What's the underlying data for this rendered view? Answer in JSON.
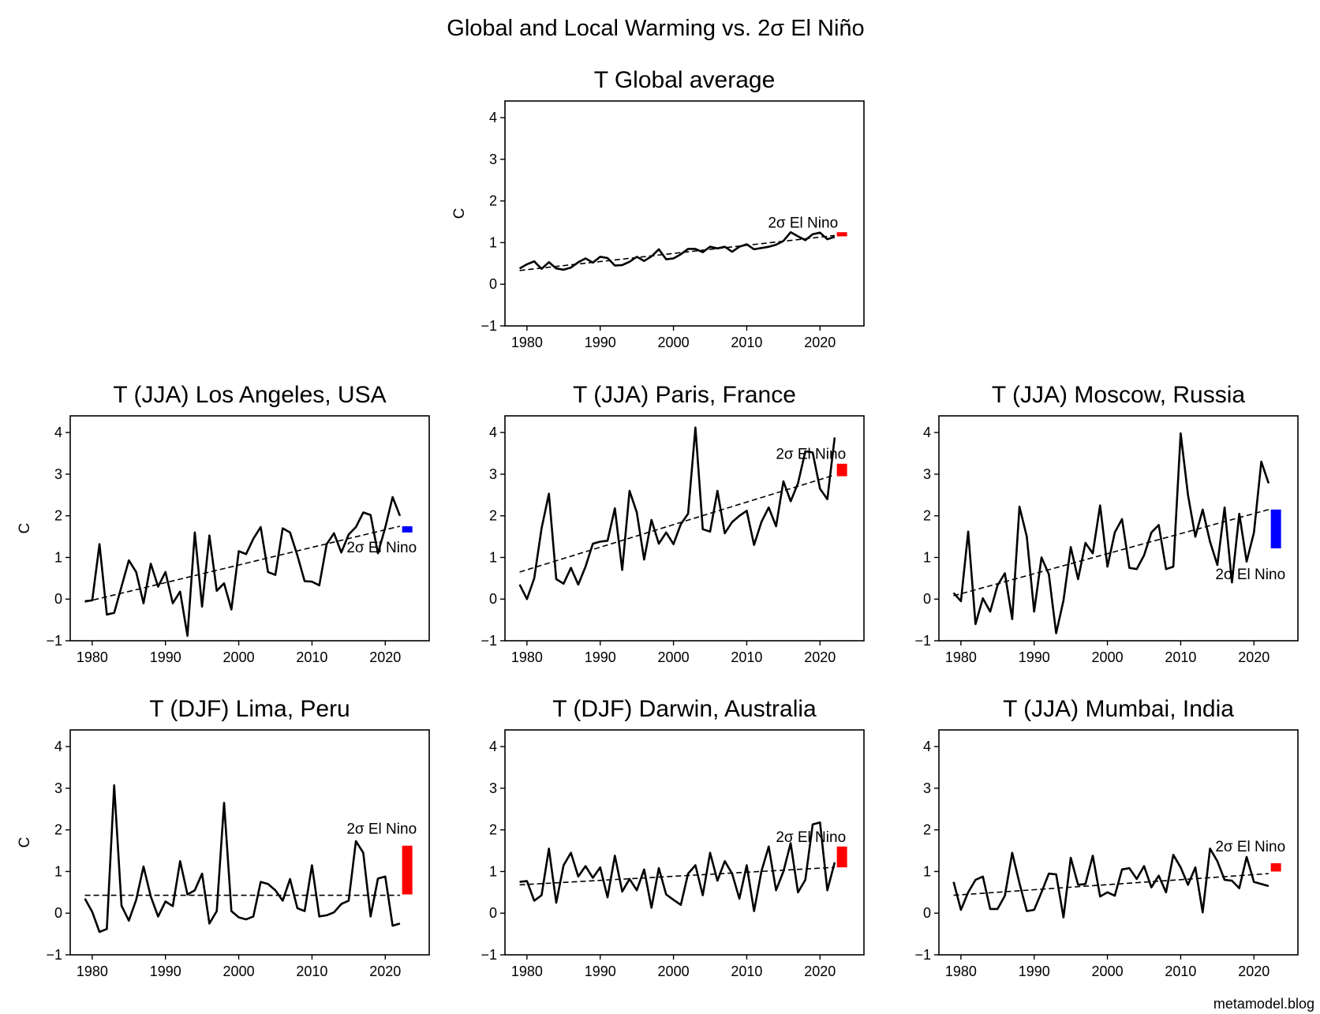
{
  "figure": {
    "suptitle": "Global and Local Warming vs. 2σ El Niño",
    "credit": "metamodel.blog"
  },
  "chart_data": [
    {
      "type": "line",
      "title": "T Global average",
      "ylabel": "C",
      "xlim": [
        1977,
        2026
      ],
      "ylim": [
        -1,
        4.4
      ],
      "xticks": [
        1980,
        1990,
        2000,
        2010,
        2020
      ],
      "yticks": [
        -1,
        0,
        1,
        2,
        3,
        4
      ],
      "annotation": "2σ El Nino",
      "bar": {
        "color": "#ff0000",
        "x": 2023,
        "y0": 1.15,
        "y1": 1.25
      },
      "trend": {
        "x": [
          1979,
          2022
        ],
        "y": [
          0.33,
          1.17
        ]
      },
      "series": [
        {
          "x_start": 1979,
          "values": [
            0.38,
            0.48,
            0.55,
            0.37,
            0.53,
            0.38,
            0.35,
            0.4,
            0.53,
            0.62,
            0.52,
            0.66,
            0.63,
            0.45,
            0.46,
            0.54,
            0.66,
            0.56,
            0.67,
            0.84,
            0.6,
            0.62,
            0.72,
            0.85,
            0.85,
            0.77,
            0.9,
            0.86,
            0.9,
            0.78,
            0.9,
            0.96,
            0.84,
            0.87,
            0.9,
            0.95,
            1.04,
            1.25,
            1.15,
            1.06,
            1.2,
            1.24,
            1.08,
            1.14
          ]
        }
      ]
    },
    {
      "type": "line",
      "title": "T (JJA) Los Angeles, USA",
      "ylabel": "C",
      "xlim": [
        1977,
        2026
      ],
      "ylim": [
        -1,
        4.4
      ],
      "xticks": [
        1980,
        1990,
        2000,
        2010,
        2020
      ],
      "yticks": [
        -1,
        0,
        1,
        2,
        3,
        4
      ],
      "annotation": "2σ El Nino",
      "bar": {
        "color": "#0000ff",
        "x": 2023,
        "y0": 1.6,
        "y1": 1.75
      },
      "trend": {
        "x": [
          1979,
          2022
        ],
        "y": [
          -0.07,
          1.75
        ]
      },
      "series": [
        {
          "x_start": 1979,
          "values": [
            -0.05,
            -0.03,
            1.32,
            -0.37,
            -0.33,
            0.3,
            0.93,
            0.65,
            -0.1,
            0.85,
            0.3,
            0.65,
            -0.1,
            0.18,
            -0.88,
            1.6,
            -0.18,
            1.53,
            0.2,
            0.38,
            -0.25,
            1.15,
            1.08,
            1.45,
            1.73,
            0.65,
            0.58,
            1.7,
            1.6,
            1.05,
            0.43,
            0.42,
            0.33,
            1.32,
            1.58,
            1.12,
            1.55,
            1.73,
            2.08,
            2.02,
            1.1,
            1.72,
            2.45,
            2.0
          ]
        }
      ]
    },
    {
      "type": "line",
      "title": "T (JJA) Paris, France",
      "ylabel": "",
      "xlim": [
        1977,
        2026
      ],
      "ylim": [
        -1,
        4.4
      ],
      "xticks": [
        1980,
        1990,
        2000,
        2010,
        2020
      ],
      "yticks": [
        -1,
        0,
        1,
        2,
        3,
        4
      ],
      "annotation": "2σ El Nino",
      "bar": {
        "color": "#ff0000",
        "x": 2023,
        "y0": 2.95,
        "y1": 3.25
      },
      "trend": {
        "x": [
          1979,
          2022
        ],
        "y": [
          0.65,
          2.98
        ]
      },
      "series": [
        {
          "x_start": 1979,
          "values": [
            0.35,
            0.0,
            0.5,
            1.7,
            2.53,
            0.48,
            0.37,
            0.75,
            0.35,
            0.78,
            1.33,
            1.38,
            1.4,
            2.18,
            0.7,
            2.6,
            2.08,
            0.95,
            1.9,
            1.33,
            1.6,
            1.32,
            1.8,
            2.05,
            4.12,
            1.68,
            1.62,
            2.6,
            1.58,
            1.85,
            2.0,
            2.12,
            1.3,
            1.85,
            2.2,
            1.75,
            2.83,
            2.35,
            2.78,
            3.55,
            3.52,
            2.65,
            2.4,
            3.88
          ]
        }
      ]
    },
    {
      "type": "line",
      "title": "T (JJA) Moscow, Russia",
      "ylabel": "",
      "xlim": [
        1977,
        2026
      ],
      "ylim": [
        -1,
        4.4
      ],
      "xticks": [
        1980,
        1990,
        2000,
        2010,
        2020
      ],
      "yticks": [
        -1,
        0,
        1,
        2,
        3,
        4
      ],
      "annotation": "2σ El Nino",
      "bar": {
        "color": "#0000ff",
        "x": 2023,
        "y0": 1.22,
        "y1": 2.15
      },
      "trend": {
        "x": [
          1979,
          2022
        ],
        "y": [
          0.08,
          2.15
        ]
      },
      "series": [
        {
          "x_start": 1979,
          "values": [
            0.15,
            -0.05,
            1.62,
            -0.6,
            0.02,
            -0.3,
            0.33,
            0.62,
            -0.48,
            2.22,
            1.5,
            -0.3,
            1.0,
            0.6,
            -0.82,
            -0.03,
            1.25,
            0.48,
            1.35,
            1.1,
            2.25,
            0.78,
            1.6,
            1.92,
            0.75,
            0.72,
            1.05,
            1.6,
            1.78,
            0.72,
            0.78,
            3.98,
            2.5,
            1.5,
            2.15,
            1.38,
            0.82,
            2.2,
            0.4,
            2.05,
            0.9,
            1.6,
            3.3,
            2.78
          ]
        }
      ]
    },
    {
      "type": "line",
      "title": "T (DJF) Lima, Peru",
      "ylabel": "C",
      "xlim": [
        1977,
        2026
      ],
      "ylim": [
        -1,
        4.4
      ],
      "xticks": [
        1980,
        1990,
        2000,
        2010,
        2020
      ],
      "yticks": [
        -1,
        0,
        1,
        2,
        3,
        4
      ],
      "annotation": "2σ El Nino",
      "bar": {
        "color": "#ff0000",
        "x": 2023,
        "y0": 0.45,
        "y1": 1.62
      },
      "trend": {
        "x": [
          1979,
          2022
        ],
        "y": [
          0.43,
          0.43
        ]
      },
      "series": [
        {
          "x_start": 1979,
          "values": [
            0.35,
            0.03,
            -0.45,
            -0.38,
            3.07,
            0.18,
            -0.18,
            0.32,
            1.12,
            0.4,
            -0.08,
            0.28,
            0.17,
            1.25,
            0.45,
            0.55,
            0.95,
            -0.25,
            0.05,
            2.65,
            0.05,
            -0.1,
            -0.15,
            -0.08,
            0.75,
            0.7,
            0.55,
            0.3,
            0.82,
            0.12,
            0.05,
            1.15,
            -0.08,
            -0.05,
            0.02,
            0.22,
            0.3,
            1.73,
            1.45,
            -0.08,
            0.83,
            0.88,
            -0.3,
            -0.25
          ]
        }
      ]
    },
    {
      "type": "line",
      "title": "T (DJF) Darwin, Australia",
      "ylabel": "",
      "xlim": [
        1977,
        2026
      ],
      "ylim": [
        -1,
        4.4
      ],
      "xticks": [
        1980,
        1990,
        2000,
        2010,
        2020
      ],
      "yticks": [
        -1,
        0,
        1,
        2,
        3,
        4
      ],
      "annotation": "2σ El Nino",
      "bar": {
        "color": "#ff0000",
        "x": 2023,
        "y0": 1.1,
        "y1": 1.6
      },
      "trend": {
        "x": [
          1979,
          2022
        ],
        "y": [
          0.68,
          1.1
        ]
      },
      "series": [
        {
          "x_start": 1979,
          "values": [
            0.75,
            0.77,
            0.3,
            0.43,
            1.55,
            0.25,
            1.15,
            1.45,
            0.88,
            1.13,
            0.85,
            1.1,
            0.38,
            1.38,
            0.52,
            0.82,
            0.55,
            1.05,
            0.13,
            1.08,
            0.45,
            0.32,
            0.2,
            0.95,
            1.15,
            0.43,
            1.45,
            0.78,
            1.25,
            0.95,
            0.35,
            1.15,
            0.05,
            1.0,
            1.6,
            0.55,
            1.0,
            1.68,
            0.5,
            0.8,
            2.13,
            2.18,
            0.55,
            1.22
          ]
        }
      ]
    },
    {
      "type": "line",
      "title": "T (JJA) Mumbai, India",
      "ylabel": "",
      "xlim": [
        1977,
        2026
      ],
      "ylim": [
        -1,
        4.4
      ],
      "xticks": [
        1980,
        1990,
        2000,
        2010,
        2020
      ],
      "yticks": [
        -1,
        0,
        1,
        2,
        3,
        4
      ],
      "annotation": "2σ El Nino",
      "bar": {
        "color": "#ff0000",
        "x": 2023,
        "y0": 1.0,
        "y1": 1.2
      },
      "trend": {
        "x": [
          1979,
          2022
        ],
        "y": [
          0.43,
          0.95
        ]
      },
      "series": [
        {
          "x_start": 1979,
          "values": [
            0.75,
            0.08,
            0.5,
            0.8,
            0.88,
            0.1,
            0.1,
            0.42,
            1.45,
            0.72,
            0.05,
            0.08,
            0.5,
            0.95,
            0.93,
            -0.1,
            1.33,
            0.68,
            0.7,
            1.38,
            0.4,
            0.5,
            0.42,
            1.05,
            1.08,
            0.82,
            1.13,
            0.62,
            0.9,
            0.5,
            1.4,
            1.1,
            0.68,
            1.1,
            0.02,
            1.55,
            1.25,
            0.8,
            0.78,
            0.6,
            1.35,
            0.75,
            0.7,
            0.65
          ]
        }
      ]
    }
  ]
}
